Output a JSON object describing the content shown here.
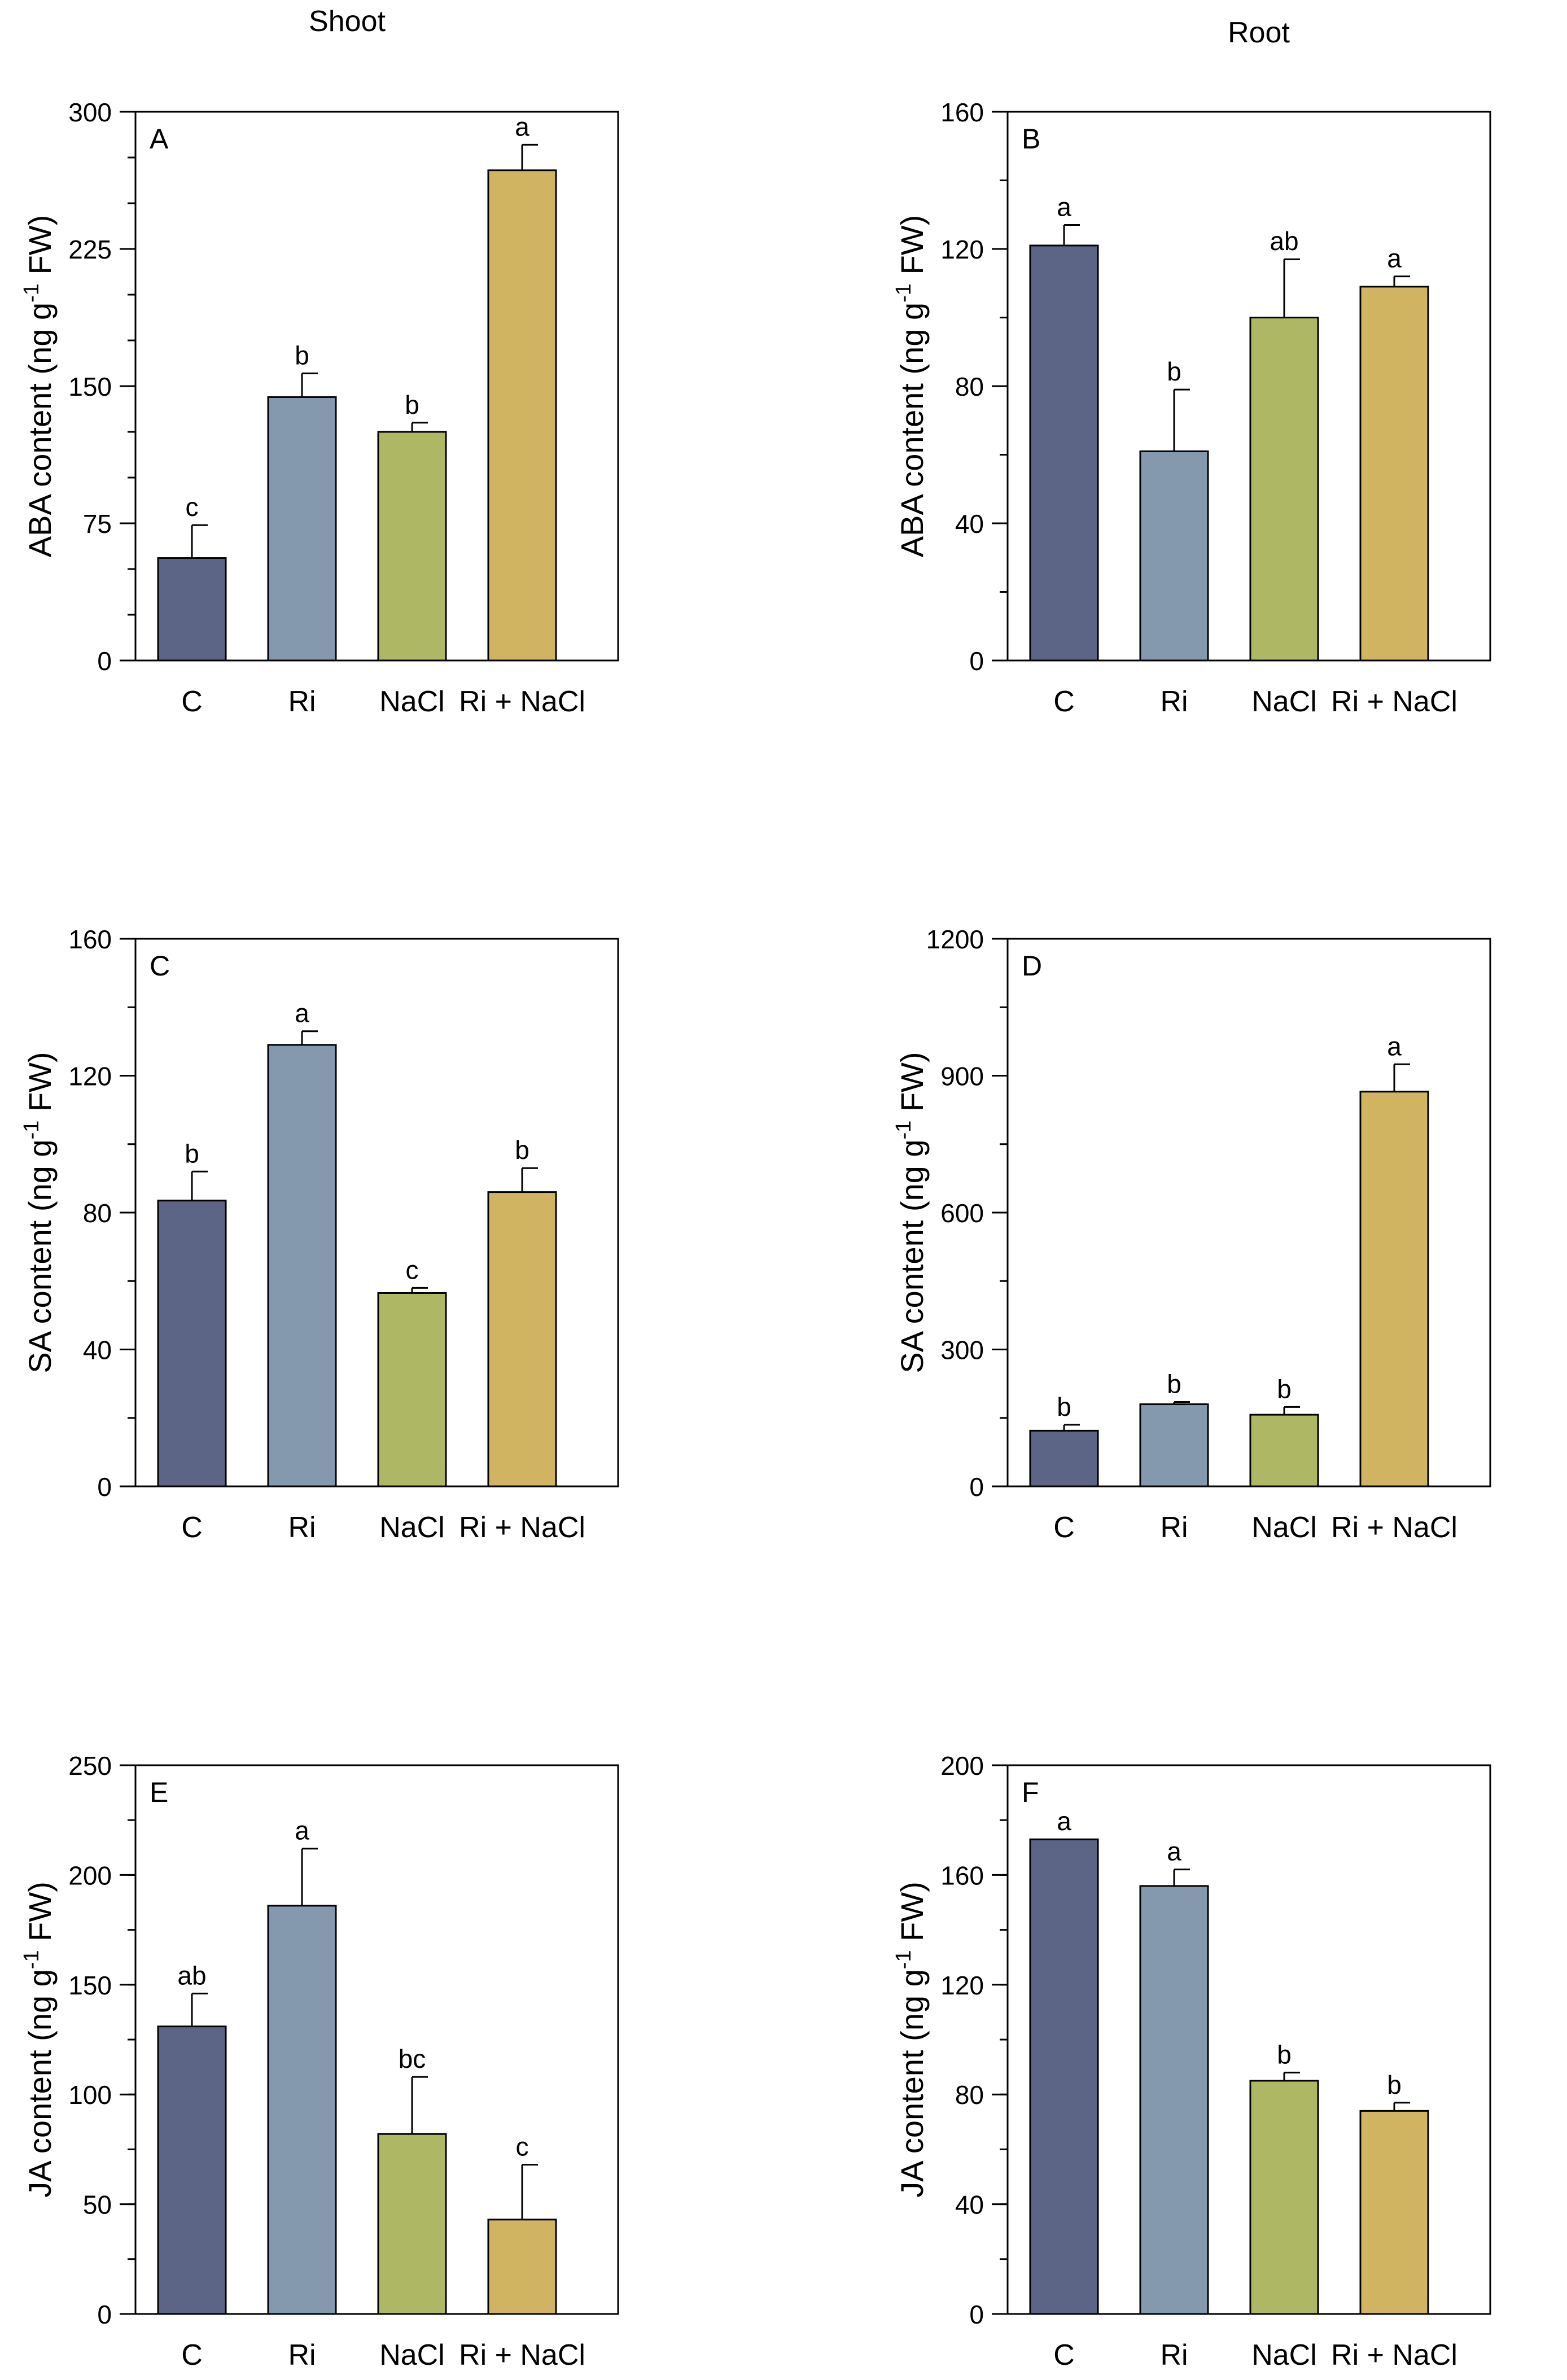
{
  "headers": {
    "shoot": "Shoot",
    "root": "Root"
  },
  "colors": [
    "#5c6586",
    "#8599ae",
    "#aeb864",
    "#d0b462"
  ],
  "chart_data": [
    {
      "panel": "A",
      "type": "bar",
      "ylabel": "ABA content (ng g-1 FW)",
      "categories": [
        "C",
        "Ri",
        "NaCl",
        "Ri + NaCl"
      ],
      "values": [
        56,
        144,
        125,
        268
      ],
      "errors": [
        18,
        13,
        5,
        14
      ],
      "letters": [
        "c",
        "b",
        "b",
        "a"
      ],
      "ylim": [
        0,
        300
      ],
      "ticks": [
        0,
        75,
        150,
        225,
        300
      ],
      "tick_labels": [
        "0",
        "75",
        "150",
        "225",
        "300"
      ],
      "minor_step": 25
    },
    {
      "panel": "B",
      "type": "bar",
      "ylabel": "ABA content (ng g-1 FW)",
      "categories": [
        "C",
        "Ri",
        "NaCl",
        "Ri + NaCl"
      ],
      "values": [
        121,
        61,
        100,
        109
      ],
      "errors": [
        6,
        18,
        17,
        3
      ],
      "letters": [
        "a",
        "b",
        "ab",
        "a"
      ],
      "ylim": [
        0,
        160
      ],
      "ticks": [
        0,
        40,
        80,
        120,
        160
      ],
      "tick_labels": [
        "0",
        "40",
        "80",
        "120",
        "160"
      ],
      "minor_step": 20
    },
    {
      "panel": "C",
      "type": "bar",
      "ylabel": "SA content (ng g-1 FW)",
      "categories": [
        "C",
        "Ri",
        "NaCl",
        "Ri + NaCl"
      ],
      "values": [
        83.5,
        129,
        56.5,
        86
      ],
      "errors": [
        8.5,
        4,
        1.5,
        7
      ],
      "letters": [
        "b",
        "a",
        "c",
        "b"
      ],
      "ylim": [
        0,
        160
      ],
      "ticks": [
        0,
        40,
        80,
        120,
        160
      ],
      "tick_labels": [
        "0",
        "40",
        "80",
        "120",
        "160"
      ],
      "minor_step": 20
    },
    {
      "panel": "D",
      "type": "bar",
      "ylabel": "SA content (ng g-1 FW)",
      "categories": [
        "C",
        "Ri",
        "NaCl",
        "Ri + NaCl"
      ],
      "values": [
        122,
        180,
        157,
        865
      ],
      "errors": [
        13,
        5,
        17,
        60
      ],
      "letters": [
        "b",
        "b",
        "b",
        "a"
      ],
      "ylim": [
        0,
        1200
      ],
      "ticks": [
        0,
        300,
        600,
        900,
        1200
      ],
      "tick_labels": [
        "0",
        "300",
        "600",
        "900",
        "1200"
      ],
      "minor_step": 150
    },
    {
      "panel": "E",
      "type": "bar",
      "ylabel": "JA content (ng g-1 FW)",
      "categories": [
        "C",
        "Ri",
        "NaCl",
        "Ri + NaCl"
      ],
      "values": [
        131,
        186,
        82,
        43
      ],
      "errors": [
        15,
        26,
        26,
        25
      ],
      "letters": [
        "ab",
        "a",
        "bc",
        "c"
      ],
      "ylim": [
        0,
        250
      ],
      "ticks": [
        0,
        50,
        100,
        150,
        200,
        250
      ],
      "tick_labels": [
        "0",
        "50",
        "100",
        "150",
        "200",
        "250"
      ],
      "minor_step": 25
    },
    {
      "panel": "F",
      "type": "bar",
      "ylabel": "JA content (ng g-1 FW)",
      "categories": [
        "C",
        "Ri",
        "NaCl",
        "Ri + NaCl"
      ],
      "values": [
        173,
        156,
        85,
        74
      ],
      "errors": [
        0,
        6,
        3,
        3
      ],
      "letters": [
        "a",
        "a",
        "b",
        "b"
      ],
      "ylim": [
        0,
        200
      ],
      "ticks": [
        0,
        40,
        80,
        120,
        160,
        200
      ],
      "tick_labels": [
        "0",
        "40",
        "80",
        "120",
        "160",
        "200"
      ],
      "minor_step": 20
    }
  ]
}
